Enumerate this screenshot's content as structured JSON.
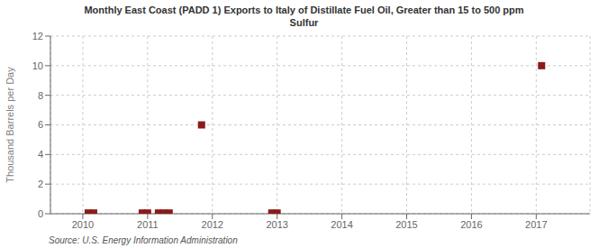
{
  "chart_data": {
    "type": "scatter",
    "title": "Monthly East Coast (PADD 1) Exports to Italy of Distillate Fuel Oil, Greater than 15 to 500 ppm\nSulfur",
    "ylabel": "Thousand Barrels per Day",
    "source": "Source: U.S. Energy Information Administration",
    "x": [
      2010.083,
      2010.167,
      2010.917,
      2011.0,
      2011.167,
      2011.25,
      2011.333,
      2011.833,
      2012.917,
      2013.0,
      2017.083
    ],
    "values": [
      0.05,
      0.05,
      0.05,
      0.05,
      0.05,
      0.05,
      0.05,
      6.0,
      0.05,
      0.05,
      10.0
    ],
    "color": "#8b1a1a",
    "marker": "square",
    "xlim": [
      2009.5,
      2017.83
    ],
    "ylim": [
      0,
      12
    ],
    "xticks": [
      2010,
      2011,
      2012,
      2013,
      2014,
      2015,
      2016,
      2017
    ],
    "yticks": [
      0,
      2,
      4,
      6,
      8,
      10,
      12
    ],
    "grid": true
  }
}
